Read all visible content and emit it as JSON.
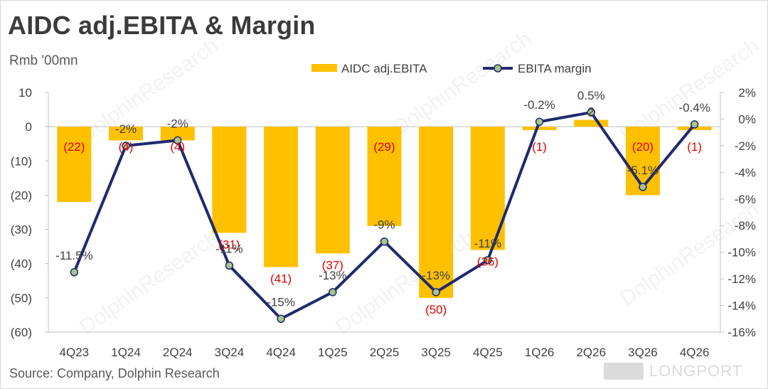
{
  "title": "AIDC  adj.EBITA & Margin",
  "unit": "Rmb '00mn",
  "source": "Source: Company, Dolphin Research",
  "watermark": "DolphinResearch",
  "brand": "LONGPORT",
  "colors": {
    "bar": "#FFC000",
    "line": "#1F2A6E",
    "marker_fill": "#A9C48A",
    "bar_label": "#E00000",
    "text": "#404040"
  },
  "chart_data": {
    "type": "bar",
    "categories": [
      "4Q23",
      "1Q24",
      "2Q24",
      "3Q24",
      "4Q24",
      "1Q25",
      "2Q25",
      "3Q25",
      "4Q25",
      "1Q26",
      "2Q26",
      "3Q26",
      "4Q26"
    ],
    "series": [
      {
        "name": "AIDC adj.EBITA",
        "type": "bar",
        "axis": "left",
        "values": [
          -22,
          -4,
          -4,
          -31,
          -41,
          -37,
          -29,
          -50,
          -36,
          -1,
          2,
          -20,
          -1
        ],
        "labels": [
          "(22)",
          "(4)",
          "(4)",
          "(31)",
          "(41)",
          "(37)",
          "(29)",
          "(50)",
          "(36)",
          "(1)",
          "2",
          "(20)",
          "(1)"
        ]
      },
      {
        "name": "EBITA margin",
        "type": "line",
        "axis": "right",
        "values": [
          -11.5,
          -2,
          -1.6,
          -11,
          -15,
          -13,
          -9.2,
          -13,
          -10.6,
          -0.2,
          0.5,
          -5.1,
          -0.4
        ],
        "labels": [
          "-11.5%",
          "-2%",
          "-2%",
          "-11%",
          "-15%",
          "-13%",
          "-9%",
          "-13%",
          "-11%",
          "-0.2%",
          "0.5%",
          "-5.1%",
          "-0.4%"
        ]
      }
    ],
    "y_left": {
      "min": -60,
      "max": 10,
      "ticks": [
        10,
        0,
        -10,
        -20,
        -30,
        -40,
        -50,
        -60
      ],
      "tick_labels": [
        "10",
        "0",
        "(10)",
        "(20)",
        "(30)",
        "(40)",
        "(50)",
        "(60)"
      ]
    },
    "y_right": {
      "min": -16,
      "max": 2,
      "ticks": [
        2,
        0,
        -2,
        -4,
        -6,
        -8,
        -10,
        -12,
        -14,
        -16
      ],
      "tick_labels": [
        "2%",
        "0%",
        "-2%",
        "-4%",
        "-6%",
        "-8%",
        "-10%",
        "-12%",
        "-14%",
        "-16%"
      ]
    },
    "legend": {
      "position": "top-center",
      "items": [
        "AIDC adj.EBITA",
        "EBITA margin"
      ]
    },
    "grid": false
  }
}
